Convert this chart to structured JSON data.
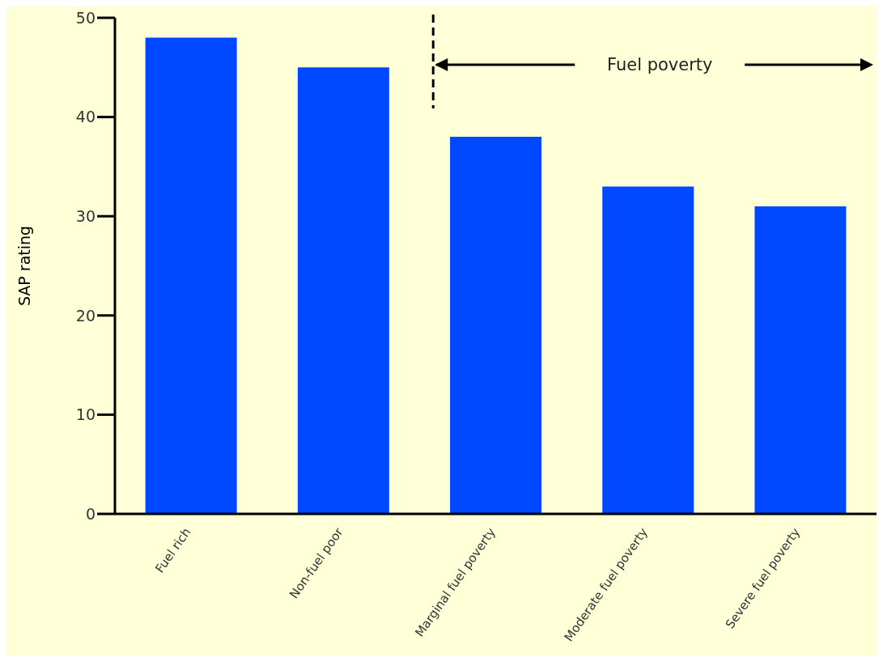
{
  "chart_data": {
    "type": "bar",
    "ylabel": "SAP rating",
    "categories": [
      "Fuel rich",
      "Non-fuel poor",
      "Marginal fuel poverty",
      "Moderate fuel poverty",
      "Severe fuel poverty"
    ],
    "values": [
      48,
      45,
      38,
      33,
      31
    ],
    "color": "#0048ff",
    "ylim": [
      0,
      50
    ],
    "yticks": [
      0,
      10,
      20,
      30,
      40,
      50
    ],
    "annotations": [
      "Fuel poverty"
    ]
  }
}
